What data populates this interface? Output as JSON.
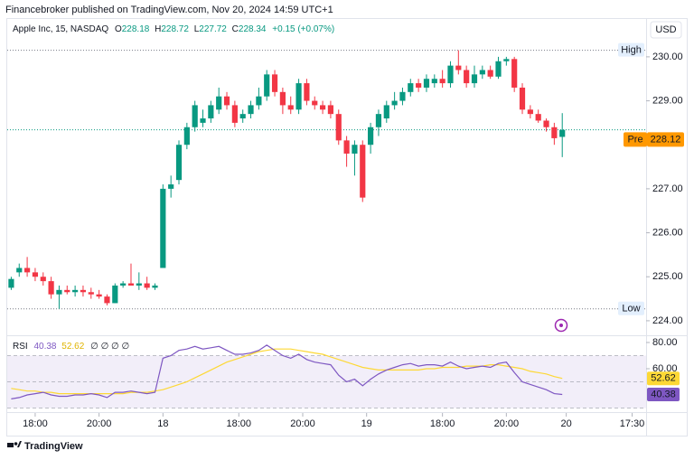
{
  "header": {
    "text": "Financebroker published on TradingView.com, Nov 20, 2024 14:59 UTC+1"
  },
  "footer": {
    "brand": "TradingView"
  },
  "chart_data": {
    "type": "candlestick",
    "title": "Apple Inc, 15, NASDAQ",
    "ohlc_labels": [
      "O",
      "H",
      "L",
      "C"
    ],
    "change": "+0.15 (+0.07%)",
    "currency": "USD",
    "colors": {
      "up": "#089981",
      "down": "#f23645"
    },
    "candles": [
      [
        224.75,
        225.0,
        224.7,
        224.95
      ],
      [
        225.1,
        225.3,
        225.0,
        225.2
      ],
      [
        225.2,
        225.45,
        225.0,
        225.1
      ],
      [
        225.1,
        225.2,
        224.9,
        225.0
      ],
      [
        225.0,
        225.1,
        224.8,
        224.9
      ],
      [
        224.9,
        225.0,
        224.5,
        224.6
      ],
      [
        224.6,
        224.8,
        224.27,
        224.7
      ],
      [
        224.7,
        224.8,
        224.6,
        224.65
      ],
      [
        224.65,
        224.8,
        224.55,
        224.7
      ],
      [
        224.7,
        224.8,
        224.55,
        224.65
      ],
      [
        224.65,
        224.75,
        224.5,
        224.6
      ],
      [
        224.6,
        224.7,
        224.5,
        224.55
      ],
      [
        224.55,
        224.6,
        224.35,
        224.4
      ],
      [
        224.4,
        224.85,
        224.4,
        224.8
      ],
      [
        224.8,
        224.9,
        224.75,
        224.85
      ],
      [
        224.85,
        225.3,
        224.8,
        224.8
      ],
      [
        224.8,
        225.1,
        224.7,
        224.85
      ],
      [
        224.85,
        225.0,
        224.7,
        224.75
      ],
      [
        224.75,
        224.85,
        224.7,
        224.8
      ],
      [
        225.2,
        227.1,
        225.2,
        227.0
      ],
      [
        227.0,
        227.3,
        226.8,
        227.1
      ],
      [
        227.2,
        228.1,
        227.1,
        228.0
      ],
      [
        228.0,
        228.5,
        227.9,
        228.4
      ],
      [
        228.4,
        229.0,
        228.3,
        228.9
      ],
      [
        228.5,
        228.8,
        228.4,
        228.6
      ],
      [
        228.6,
        229.0,
        228.5,
        228.9
      ],
      [
        228.8,
        229.3,
        228.7,
        229.1
      ],
      [
        229.1,
        229.2,
        228.8,
        228.9
      ],
      [
        228.9,
        229.0,
        228.4,
        228.5
      ],
      [
        228.6,
        228.8,
        228.5,
        228.7
      ],
      [
        228.7,
        229.0,
        228.6,
        228.9
      ],
      [
        228.9,
        229.3,
        228.8,
        229.1
      ],
      [
        229.1,
        229.7,
        229.0,
        229.6
      ],
      [
        229.6,
        229.7,
        229.1,
        229.2
      ],
      [
        229.2,
        229.3,
        228.7,
        228.9
      ],
      [
        228.9,
        229.1,
        228.7,
        228.8
      ],
      [
        228.8,
        229.5,
        228.7,
        229.4
      ],
      [
        229.4,
        229.5,
        228.9,
        229.0
      ],
      [
        229.0,
        229.1,
        228.8,
        228.9
      ],
      [
        228.9,
        229.0,
        228.7,
        228.8
      ],
      [
        228.9,
        229.0,
        228.6,
        228.7
      ],
      [
        228.7,
        228.8,
        228.0,
        228.1
      ],
      [
        228.1,
        228.2,
        227.5,
        227.8
      ],
      [
        227.8,
        228.1,
        227.3,
        228.0
      ],
      [
        228.0,
        228.1,
        226.7,
        226.8
      ],
      [
        228.0,
        228.5,
        227.8,
        228.4
      ],
      [
        228.4,
        228.8,
        228.2,
        228.7
      ],
      [
        228.6,
        229.0,
        228.5,
        228.9
      ],
      [
        228.9,
        229.2,
        228.8,
        229.0
      ],
      [
        229.0,
        229.3,
        228.9,
        229.2
      ],
      [
        229.2,
        229.5,
        229.1,
        229.4
      ],
      [
        229.4,
        229.5,
        229.2,
        229.3
      ],
      [
        229.3,
        229.6,
        229.2,
        229.5
      ],
      [
        229.4,
        229.6,
        229.3,
        229.5
      ],
      [
        229.5,
        229.7,
        229.3,
        229.4
      ],
      [
        229.4,
        229.9,
        229.3,
        229.8
      ],
      [
        229.8,
        230.15,
        229.6,
        229.7
      ],
      [
        229.7,
        229.8,
        229.3,
        229.4
      ],
      [
        229.4,
        229.8,
        229.3,
        229.6
      ],
      [
        229.6,
        229.8,
        229.5,
        229.7
      ],
      [
        229.7,
        229.8,
        229.5,
        229.55
      ],
      [
        229.55,
        230.0,
        229.5,
        229.9
      ],
      [
        229.9,
        230.0,
        229.8,
        229.95
      ],
      [
        229.95,
        230.0,
        229.2,
        229.3
      ],
      [
        229.3,
        229.4,
        228.7,
        228.8
      ],
      [
        228.8,
        228.9,
        228.6,
        228.7
      ],
      [
        228.7,
        228.8,
        228.5,
        228.55
      ],
      [
        228.55,
        228.6,
        228.3,
        228.4
      ],
      [
        228.4,
        228.5,
        228.0,
        228.15
      ],
      [
        228.18,
        228.72,
        227.72,
        228.34
      ]
    ],
    "xlim": [
      -0.5,
      79.5
    ],
    "xticks": [
      {
        "value": 3,
        "label": "18:00"
      },
      {
        "value": 11,
        "label": "20:00"
      },
      {
        "value": 19,
        "label": "18"
      },
      {
        "value": 28.5,
        "label": "18:00"
      },
      {
        "value": 36.5,
        "label": "20:00"
      },
      {
        "value": 44.5,
        "label": "19"
      },
      {
        "value": 54,
        "label": "18:00"
      },
      {
        "value": 62,
        "label": "20:00"
      },
      {
        "value": 69.5,
        "label": "20"
      },
      {
        "value": 77.75,
        "label": "17:30"
      }
    ],
    "ylim": [
      223.69,
      230.84
    ],
    "yticks": [
      {
        "value": 224,
        "label": "224.00"
      },
      {
        "value": 225,
        "label": "225.00"
      },
      {
        "value": 226,
        "label": "226.00"
      },
      {
        "value": 227,
        "label": "227.00"
      },
      {
        "value": 229,
        "label": "229.00"
      },
      {
        "value": 230,
        "label": "230.00"
      }
    ],
    "high_line": {
      "label": "High",
      "value": 230.15
    },
    "low_line": {
      "label": "Low",
      "value": 224.27
    },
    "pre": {
      "label": "Pre",
      "value": 228.12,
      "color": "#ff9800"
    },
    "rsi": {
      "title": "RSI",
      "placeholders": "∅ ∅ ∅ ∅",
      "ylim": [
        27.6,
        84.8
      ],
      "yticks": [
        {
          "value": 80,
          "label": "80.00"
        },
        {
          "value": 60,
          "label": "60.00"
        }
      ],
      "levels": [
        30,
        50,
        70
      ],
      "band_color": "#7e57c2",
      "series": [
        {
          "color": "#7e57c2",
          "values": [
            37,
            38,
            40,
            41,
            42,
            40,
            39,
            39,
            40,
            40,
            41,
            40,
            38,
            42,
            42,
            43,
            42,
            41,
            42,
            68,
            70,
            74,
            75,
            77,
            75,
            76,
            77,
            74,
            71,
            71,
            72,
            74,
            78,
            74,
            70,
            68,
            71,
            67,
            65,
            64,
            63,
            55,
            50,
            52,
            47,
            52,
            56,
            59,
            61,
            63,
            64,
            62,
            63,
            63,
            62,
            65,
            62,
            60,
            61,
            62,
            61,
            64,
            65,
            57,
            50,
            48,
            46,
            44,
            41,
            40.38
          ]
        },
        {
          "color": "#fdd835",
          "values": [
            45,
            44,
            43,
            43,
            42,
            42,
            41,
            41,
            41,
            41,
            41,
            41,
            41,
            41,
            41,
            42,
            42,
            42,
            43,
            44,
            46,
            48,
            50,
            53,
            56,
            59,
            62,
            65,
            67,
            69,
            71,
            73,
            74,
            75,
            75,
            75,
            74,
            73,
            72,
            71,
            69,
            67,
            65,
            63,
            61,
            60,
            59,
            59,
            59,
            59,
            59,
            59,
            60,
            60,
            61,
            61,
            61,
            62,
            62,
            62,
            63,
            63,
            62,
            61,
            60,
            58,
            57,
            56,
            54,
            52.62
          ]
        }
      ]
    }
  }
}
